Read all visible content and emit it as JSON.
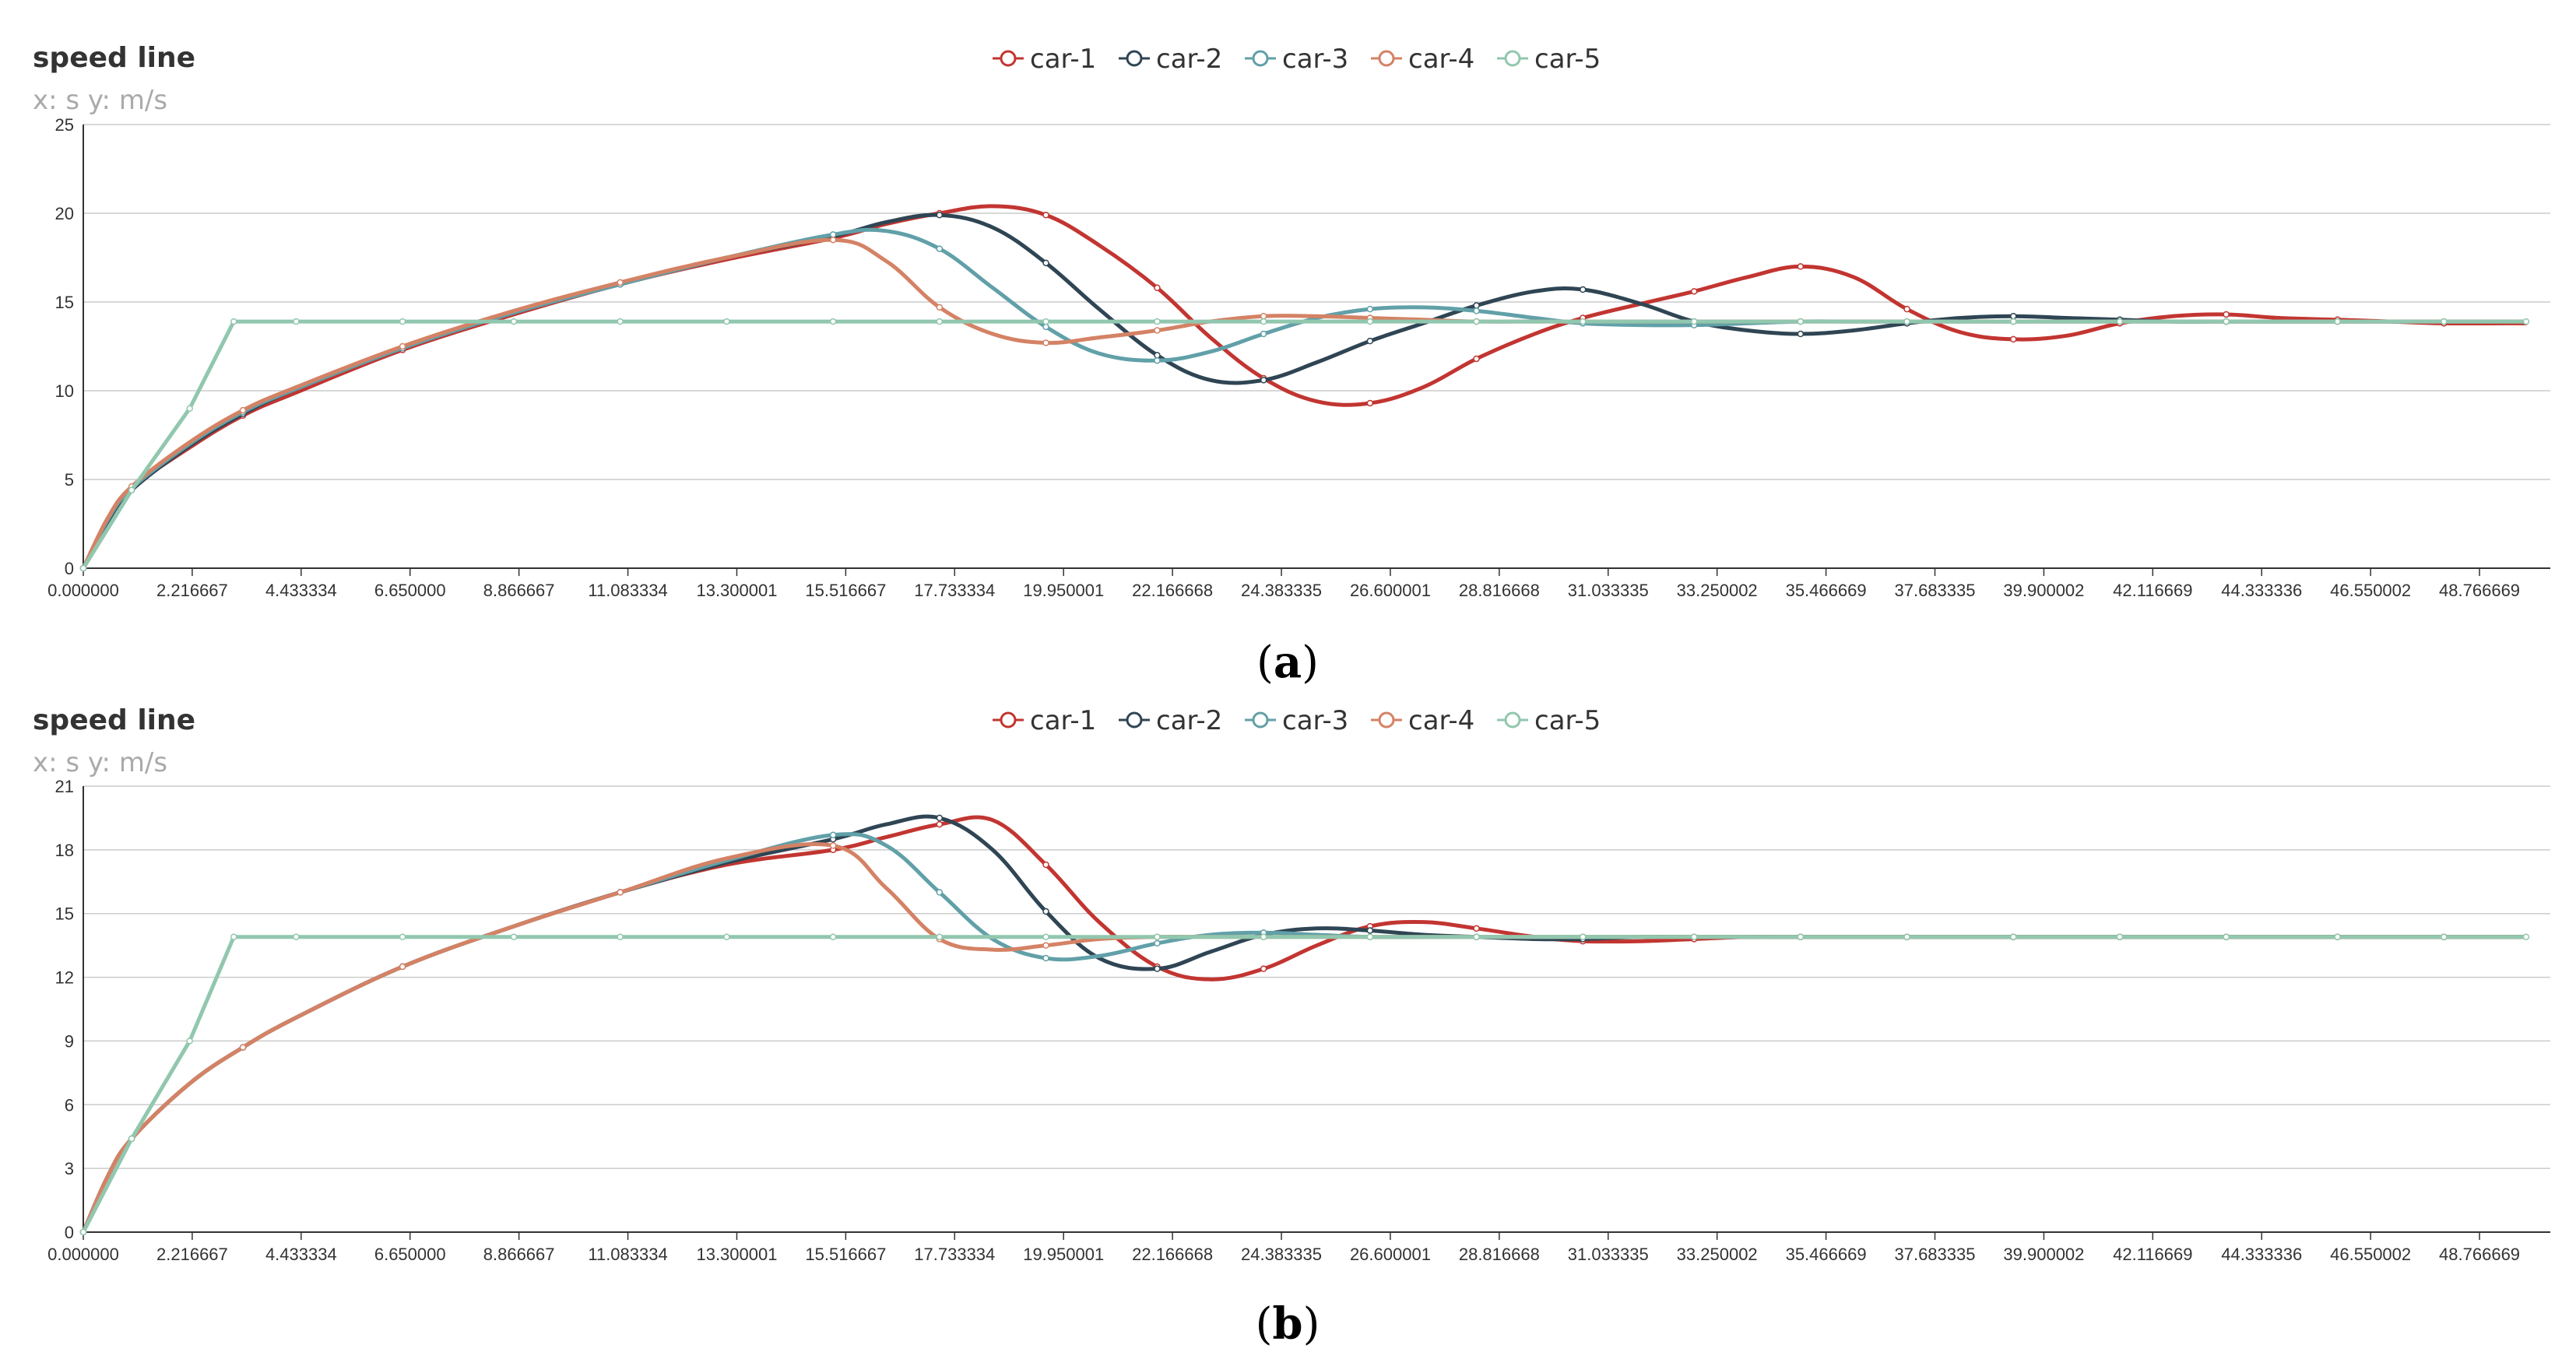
{
  "chart_data": [
    {
      "type": "line",
      "panel_label": "(a)",
      "title": "speed line",
      "subtitle": "x: s  y: m/s",
      "ylim": [
        0,
        25
      ],
      "yticks": [
        0,
        5,
        10,
        15,
        20,
        25
      ],
      "xlim": [
        0,
        51
      ],
      "xticks": [
        "0.000000",
        "2.216667",
        "4.433334",
        "6.650000",
        "8.866667",
        "11.083334",
        "13.300001",
        "15.516667",
        "17.733334",
        "19.950001",
        "22.166668",
        "24.383335",
        "26.600001",
        "28.816668",
        "31.033335",
        "33.250002",
        "35.466669",
        "37.683335",
        "39.900002",
        "42.116669",
        "44.333336",
        "46.550002",
        "48.766669"
      ],
      "grid": true,
      "legend_position": "top-center",
      "series": [
        {
          "name": "car-1",
          "color": "#c23531",
          "x": [
            0,
            0.5,
            1,
            2.2,
            3.3,
            4.4,
            6.6,
            8.9,
            11.1,
            13.3,
            15.5,
            16.6,
            17.7,
            18.8,
            19.9,
            21,
            22.2,
            23.3,
            24.4,
            25.5,
            26.6,
            27.7,
            28.8,
            30,
            31,
            32.2,
            33.3,
            34.4,
            35.5,
            36.6,
            37.7,
            38.8,
            39.9,
            41,
            42.1,
            43.2,
            44.3,
            45.4,
            46.6,
            47.7,
            48.8,
            50.5
          ],
          "y": [
            0,
            2.7,
            4.5,
            6.8,
            8.6,
            9.9,
            12.3,
            14.3,
            16,
            17.4,
            18.6,
            19.4,
            20.0,
            20.4,
            19.9,
            18.2,
            15.8,
            13,
            10.7,
            9.4,
            9.3,
            10.2,
            11.8,
            13.2,
            14.1,
            14.9,
            15.6,
            16.4,
            17,
            16.4,
            14.6,
            13.3,
            12.9,
            13.1,
            13.8,
            14.2,
            14.3,
            14.1,
            14.0,
            13.9,
            13.8,
            13.8
          ]
        },
        {
          "name": "car-2",
          "color": "#2f4554",
          "x": [
            0,
            0.5,
            1,
            2.2,
            3.3,
            4.4,
            6.6,
            8.9,
            11.1,
            13.3,
            15.5,
            16.6,
            17.7,
            18.8,
            19.9,
            21,
            22.2,
            23.3,
            24.4,
            25.5,
            26.6,
            27.7,
            28.8,
            30,
            31,
            32.2,
            33.3,
            34.4,
            35.5,
            36.6,
            37.7,
            38.8,
            39.9,
            41,
            42.1,
            43.2,
            44.3,
            45.4,
            46.6,
            47.7,
            48.8,
            50.5
          ],
          "y": [
            0,
            2.6,
            4.4,
            6.9,
            8.7,
            10.1,
            12.4,
            14.4,
            16.0,
            17.5,
            18.7,
            19.5,
            19.9,
            19.2,
            17.2,
            14.6,
            12.0,
            10.6,
            10.6,
            11.6,
            12.8,
            13.8,
            14.8,
            15.6,
            15.7,
            14.9,
            13.9,
            13.4,
            13.2,
            13.4,
            13.8,
            14.1,
            14.2,
            14.1,
            14.0,
            13.9,
            13.9,
            13.9,
            13.9,
            13.9,
            13.9,
            13.9
          ]
        },
        {
          "name": "car-3",
          "color": "#61a0a8",
          "x": [
            0,
            0.5,
            1,
            2.2,
            3.3,
            4.4,
            6.6,
            8.9,
            11.1,
            13.3,
            15.5,
            16.6,
            17.7,
            18.8,
            19.9,
            21,
            22.2,
            23.3,
            24.4,
            25.5,
            26.6,
            27.7,
            28.8,
            30,
            31,
            32.2,
            33.3,
            34.4,
            35.5,
            36.6,
            37.7,
            38.8,
            39.9,
            41,
            42.1,
            43.2,
            44.3,
            45.4,
            46.6,
            47.7,
            48.8,
            50.5
          ],
          "y": [
            0,
            2.7,
            4.5,
            7.0,
            8.8,
            10.1,
            12.4,
            14.4,
            16.0,
            17.5,
            18.8,
            19.0,
            18.0,
            15.8,
            13.6,
            12.1,
            11.7,
            12.2,
            13.2,
            14.1,
            14.6,
            14.7,
            14.5,
            14.1,
            13.8,
            13.7,
            13.7,
            13.8,
            13.9,
            13.9,
            13.9,
            13.9,
            13.9,
            13.9,
            13.9,
            13.9,
            13.9,
            13.9,
            13.9,
            13.9,
            13.9,
            13.9
          ]
        },
        {
          "name": "car-4",
          "color": "#d48265",
          "x": [
            0,
            0.5,
            1,
            2.2,
            3.3,
            4.4,
            6.6,
            8.9,
            11.1,
            13.3,
            15.5,
            16.6,
            17.7,
            18.8,
            19.9,
            21,
            22.2,
            23.3,
            24.4,
            25.5,
            26.6,
            27.7,
            28.8,
            30,
            31,
            32.2,
            33.3,
            34.4,
            35.5,
            36.6,
            37.7,
            38.8,
            39.9,
            41,
            42.1,
            43.2,
            44.3,
            45.4,
            46.6,
            47.7,
            48.8,
            50.5
          ],
          "y": [
            0,
            2.8,
            4.6,
            7.1,
            8.9,
            10.2,
            12.5,
            14.5,
            16.1,
            17.5,
            18.5,
            17.3,
            14.7,
            13.2,
            12.7,
            13.0,
            13.4,
            13.9,
            14.2,
            14.2,
            14.1,
            14.0,
            13.9,
            13.9,
            13.9,
            13.9,
            13.9,
            13.9,
            13.9,
            13.9,
            13.9,
            13.9,
            13.9,
            13.9,
            13.9,
            13.9,
            13.9,
            13.9,
            13.9,
            13.9,
            13.9,
            13.9
          ]
        },
        {
          "name": "car-5",
          "color": "#91c7ae",
          "x": [
            0,
            1,
            2.2,
            3.11,
            4.4,
            6.6,
            8.9,
            11.1,
            13.3,
            15.5,
            17.7,
            19.9,
            22.2,
            24.4,
            26.6,
            28.8,
            31,
            33.3,
            35.5,
            37.7,
            39.9,
            42.1,
            44.3,
            46.6,
            48.8,
            50.5
          ],
          "y": [
            0,
            4.4,
            9.0,
            13.9,
            13.9,
            13.9,
            13.9,
            13.9,
            13.9,
            13.9,
            13.9,
            13.9,
            13.9,
            13.9,
            13.9,
            13.9,
            13.9,
            13.9,
            13.9,
            13.9,
            13.9,
            13.9,
            13.9,
            13.9,
            13.9,
            13.9
          ]
        }
      ]
    },
    {
      "type": "line",
      "panel_label": "(b)",
      "title": "speed line",
      "subtitle": "x: s  y: m/s",
      "ylim": [
        0,
        21
      ],
      "yticks": [
        0,
        3,
        6,
        9,
        12,
        15,
        18,
        21
      ],
      "xlim": [
        0,
        51
      ],
      "xticks": [
        "0.000000",
        "2.216667",
        "4.433334",
        "6.650000",
        "8.866667",
        "11.083334",
        "13.300001",
        "15.516667",
        "17.733334",
        "19.950001",
        "22.166668",
        "24.383335",
        "26.600001",
        "28.816668",
        "31.033335",
        "33.250002",
        "35.466669",
        "37.683335",
        "39.900002",
        "42.116669",
        "44.333336",
        "46.550002",
        "48.766669"
      ],
      "grid": true,
      "legend_position": "top-center",
      "series": [
        {
          "name": "car-1",
          "color": "#c23531",
          "x": [
            0,
            0.5,
            1,
            2.2,
            3.3,
            4.4,
            6.6,
            8.9,
            11.1,
            13.3,
            15.5,
            16.6,
            17.7,
            18.8,
            19.9,
            21,
            22.2,
            23.3,
            24.4,
            25.5,
            26.6,
            27.7,
            28.8,
            30,
            31,
            32.2,
            33.3,
            34.4,
            35.5,
            36.6,
            37.7,
            38.8,
            39.9,
            41,
            42.1,
            43.2,
            44.3,
            45.4,
            46.6,
            47.7,
            48.8,
            50.5
          ],
          "y": [
            0,
            2.6,
            4.4,
            7.0,
            8.7,
            10.1,
            12.5,
            14.4,
            16.0,
            17.3,
            18.0,
            18.6,
            19.2,
            19.4,
            17.3,
            14.6,
            12.5,
            11.9,
            12.4,
            13.5,
            14.4,
            14.6,
            14.3,
            13.9,
            13.7,
            13.7,
            13.8,
            13.9,
            13.9,
            13.9,
            13.9,
            13.9,
            13.9,
            13.9,
            13.9,
            13.9,
            13.9,
            13.9,
            13.9,
            13.9,
            13.9,
            13.9
          ]
        },
        {
          "name": "car-2",
          "color": "#2f4554",
          "x": [
            0,
            0.5,
            1,
            2.2,
            3.3,
            4.4,
            6.6,
            8.9,
            11.1,
            13.3,
            15.5,
            16.6,
            17.7,
            18.8,
            19.9,
            21,
            22.2,
            23.3,
            24.4,
            25.5,
            26.6,
            27.7,
            28.8,
            30,
            31,
            32.2,
            33.3,
            34.4,
            35.5,
            36.6,
            37.7,
            38.8,
            39.9,
            41,
            42.1,
            43.2,
            44.3,
            45.4,
            46.6,
            47.7,
            48.8,
            50.5
          ],
          "y": [
            0,
            2.6,
            4.4,
            7.0,
            8.7,
            10.1,
            12.5,
            14.4,
            16.0,
            17.4,
            18.5,
            19.2,
            19.5,
            18.0,
            15.1,
            12.9,
            12.4,
            13.2,
            14.0,
            14.3,
            14.2,
            14.0,
            13.9,
            13.8,
            13.8,
            13.9,
            13.9,
            13.9,
            13.9,
            13.9,
            13.9,
            13.9,
            13.9,
            13.9,
            13.9,
            13.9,
            13.9,
            13.9,
            13.9,
            13.9,
            13.9,
            13.9
          ]
        },
        {
          "name": "car-3",
          "color": "#61a0a8",
          "x": [
            0,
            0.5,
            1,
            2.2,
            3.3,
            4.4,
            6.6,
            8.9,
            11.1,
            13.3,
            15.5,
            16.6,
            17.7,
            18.8,
            19.9,
            21,
            22.2,
            23.3,
            24.4,
            25.5,
            26.6,
            27.7,
            28.8,
            30,
            31,
            32.2,
            33.3,
            34.4,
            35.5,
            36.6,
            37.7,
            38.8,
            39.9,
            41,
            42.1,
            43.2,
            44.3,
            45.4,
            46.6,
            47.7,
            48.8,
            50.5
          ],
          "y": [
            0,
            2.6,
            4.4,
            7.0,
            8.7,
            10.1,
            12.5,
            14.4,
            16.0,
            17.5,
            18.7,
            18.2,
            16.0,
            13.8,
            12.9,
            13.0,
            13.6,
            14.0,
            14.1,
            14.0,
            13.9,
            13.9,
            13.9,
            13.9,
            13.9,
            13.9,
            13.9,
            13.9,
            13.9,
            13.9,
            13.9,
            13.9,
            13.9,
            13.9,
            13.9,
            13.9,
            13.9,
            13.9,
            13.9,
            13.9,
            13.9,
            13.9
          ]
        },
        {
          "name": "car-4",
          "color": "#d48265",
          "x": [
            0,
            0.5,
            1,
            2.2,
            3.3,
            4.4,
            6.6,
            8.9,
            11.1,
            13.3,
            15.5,
            16.6,
            17.7,
            18.8,
            19.9,
            21,
            22.2,
            23.3,
            24.4,
            25.5,
            26.6,
            27.7,
            28.8,
            30,
            31,
            32.2,
            33.3,
            34.4,
            35.5,
            36.6,
            37.7,
            38.8,
            39.9,
            41,
            42.1,
            43.2,
            44.3,
            45.4,
            46.6,
            47.7,
            48.8,
            50.5
          ],
          "y": [
            0,
            2.6,
            4.4,
            7.0,
            8.7,
            10.1,
            12.5,
            14.4,
            16.0,
            17.6,
            18.2,
            16.2,
            13.8,
            13.3,
            13.5,
            13.8,
            13.9,
            13.9,
            13.9,
            13.9,
            13.9,
            13.9,
            13.9,
            13.9,
            13.9,
            13.9,
            13.9,
            13.9,
            13.9,
            13.9,
            13.9,
            13.9,
            13.9,
            13.9,
            13.9,
            13.9,
            13.9,
            13.9,
            13.9,
            13.9,
            13.9,
            13.9
          ]
        },
        {
          "name": "car-5",
          "color": "#91c7ae",
          "x": [
            0,
            1,
            2.2,
            3.11,
            4.4,
            6.6,
            8.9,
            11.1,
            13.3,
            15.5,
            17.7,
            19.9,
            22.2,
            24.4,
            26.6,
            28.8,
            31,
            33.3,
            35.5,
            37.7,
            39.9,
            42.1,
            44.3,
            46.6,
            48.8,
            50.5
          ],
          "y": [
            0,
            4.4,
            9.0,
            13.9,
            13.9,
            13.9,
            13.9,
            13.9,
            13.9,
            13.9,
            13.9,
            13.9,
            13.9,
            13.9,
            13.9,
            13.9,
            13.9,
            13.9,
            13.9,
            13.9,
            13.9,
            13.9,
            13.9,
            13.9,
            13.9,
            13.9
          ]
        }
      ]
    }
  ]
}
